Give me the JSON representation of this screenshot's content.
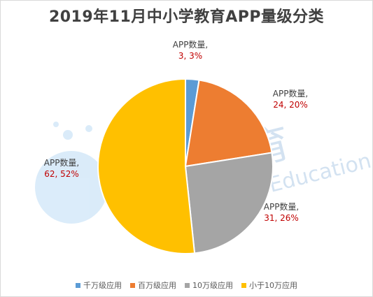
{
  "chart_data": {
    "type": "pie",
    "title": "2019年11月中小学教育APP量级分类",
    "series_name": "APP数量",
    "categories": [
      "千万级应用",
      "百万级应用",
      "10万级应用",
      "小于10万应用"
    ],
    "values": [
      3,
      24,
      31,
      62
    ],
    "percents": [
      "3%",
      "20%",
      "26%",
      "52%"
    ],
    "colors": [
      "#5B9BD5",
      "#ED7D31",
      "#A5A5A5",
      "#FFC000"
    ],
    "label_color_name": "#404040",
    "label_color_value": "#C00000",
    "legend_position": "bottom"
  },
  "watermark": {
    "cn": "蓝鲸教育",
    "en": "Blue Whale Education"
  }
}
